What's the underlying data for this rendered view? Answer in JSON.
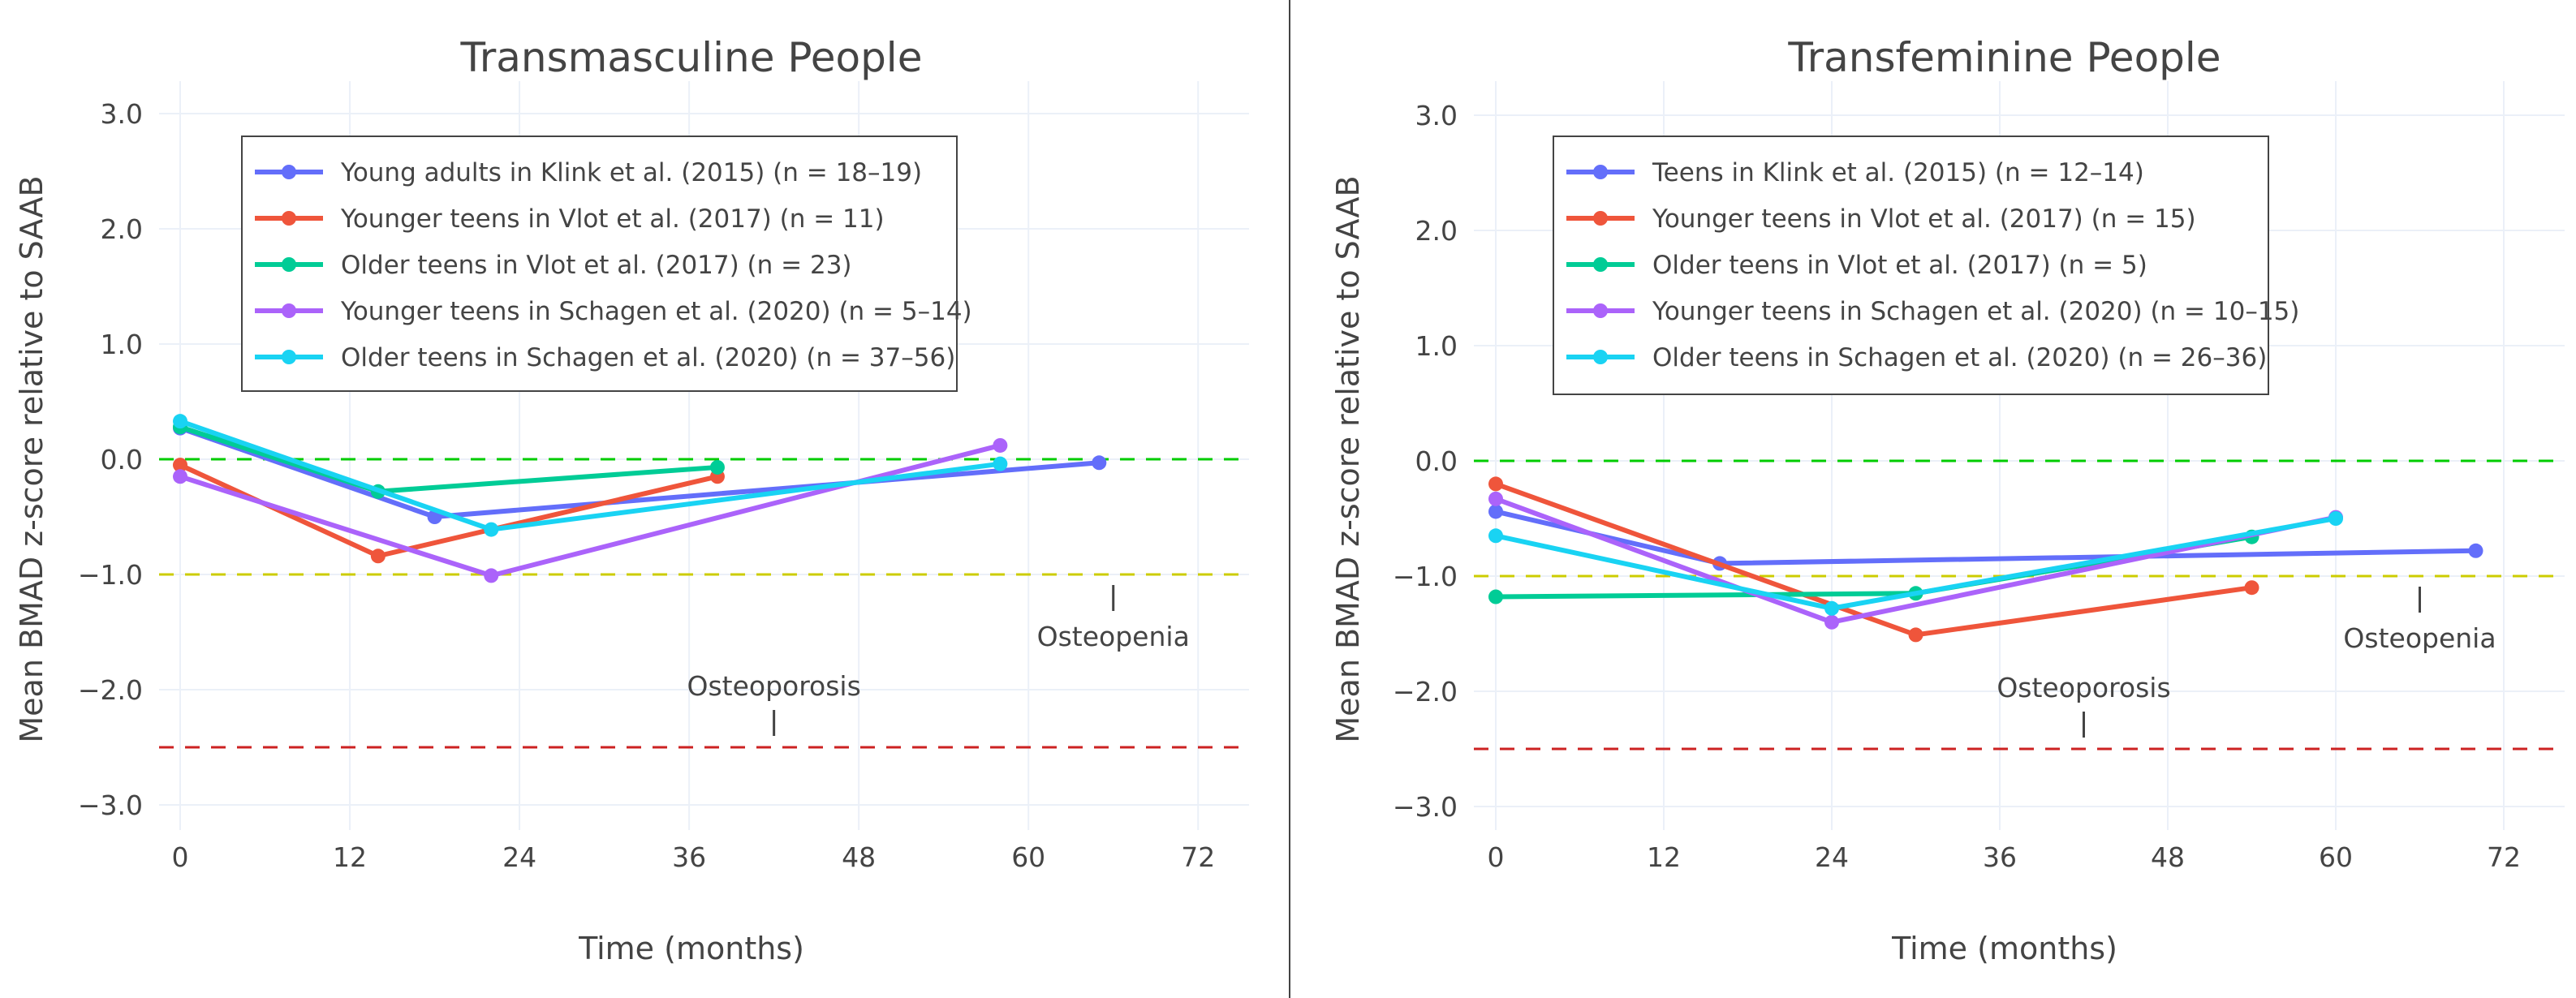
{
  "chart_data": [
    {
      "type": "line",
      "title": "Transmasculine People",
      "xlabel": "Time (months)",
      "ylabel": "Mean BMAD z-score relative to SAAB",
      "xticks": [
        "0",
        "12",
        "24",
        "36",
        "48",
        "60",
        "72"
      ],
      "yticks": [
        "3.0",
        "2.0",
        "1.0",
        "0.0",
        "−1.0",
        "−2.0",
        "−3.0"
      ],
      "xlim": [
        -1.5,
        75.6
      ],
      "ylim": [
        -3.3,
        3.3
      ],
      "grid": true,
      "legend_position": "top-left",
      "reference_lines": [
        {
          "y": 0,
          "color": "#00cc00"
        },
        {
          "y": -1,
          "color": "#cccc00"
        },
        {
          "y": -2.5,
          "color": "#cc2222"
        }
      ],
      "annotations": [
        {
          "text": "Osteopenia",
          "x": 66,
          "ref": -1,
          "side": "below"
        },
        {
          "text": "Osteoporosis",
          "x": 42,
          "ref": -2.5,
          "side": "above"
        }
      ],
      "series": [
        {
          "name": "Young adults in Klink et al. (2015) (n = 18–19)",
          "color": "#636efa",
          "x": [
            0,
            18,
            65
          ],
          "y": [
            0.27,
            -0.5,
            -0.03
          ]
        },
        {
          "name": "Younger teens in Vlot et al. (2017) (n = 11)",
          "color": "#ef553b",
          "x": [
            0,
            14,
            38
          ],
          "y": [
            -0.05,
            -0.84,
            -0.15
          ]
        },
        {
          "name": "Older teens in Vlot et al. (2017) (n = 23)",
          "color": "#00cc96",
          "x": [
            0,
            14,
            38
          ],
          "y": [
            0.28,
            -0.28,
            -0.07
          ]
        },
        {
          "name": "Younger teens in Schagen et al. (2020) (n = 5–14)",
          "color": "#ab63fa",
          "x": [
            0,
            22,
            58
          ],
          "y": [
            -0.15,
            -1.01,
            0.12
          ]
        },
        {
          "name": "Older teens in Schagen et al. (2020) (n = 37–56)",
          "color": "#19d3f3",
          "x": [
            0,
            22,
            58
          ],
          "y": [
            0.33,
            -0.61,
            -0.04
          ]
        }
      ]
    },
    {
      "type": "line",
      "title": "Transfeminine People",
      "xlabel": "Time (months)",
      "ylabel": "Mean BMAD z-score relative to SAAB",
      "xticks": [
        "0",
        "12",
        "24",
        "36",
        "48",
        "60",
        "72"
      ],
      "yticks": [
        "3.0",
        "2.0",
        "1.0",
        "0.0",
        "−1.0",
        "−2.0",
        "−3.0"
      ],
      "xlim": [
        -1.5,
        76.6
      ],
      "ylim": [
        -3.3,
        3.3
      ],
      "grid": true,
      "legend_position": "top-left",
      "reference_lines": [
        {
          "y": 0,
          "color": "#00cc00"
        },
        {
          "y": -1,
          "color": "#cccc00"
        },
        {
          "y": -2.5,
          "color": "#cc2222"
        }
      ],
      "annotations": [
        {
          "text": "Osteopenia",
          "x": 66,
          "ref": -1,
          "side": "below"
        },
        {
          "text": "Osteoporosis",
          "x": 42,
          "ref": -2.5,
          "side": "above"
        }
      ],
      "series": [
        {
          "name": "Teens in Klink et al. (2015) (n = 12–14)",
          "color": "#636efa",
          "x": [
            0,
            16,
            70
          ],
          "y": [
            -0.44,
            -0.89,
            -0.78
          ]
        },
        {
          "name": "Younger teens in Vlot et al. (2017) (n = 15)",
          "color": "#ef553b",
          "x": [
            0,
            30,
            54
          ],
          "y": [
            -0.2,
            -1.51,
            -1.1
          ]
        },
        {
          "name": "Older teens in Vlot et al. (2017) (n = 5)",
          "color": "#00cc96",
          "x": [
            0,
            30,
            54
          ],
          "y": [
            -1.18,
            -1.15,
            -0.66
          ]
        },
        {
          "name": "Younger teens in Schagen et al. (2020) (n = 10–15)",
          "color": "#ab63fa",
          "x": [
            0,
            24,
            60
          ],
          "y": [
            -0.33,
            -1.4,
            -0.49
          ]
        },
        {
          "name": "Older teens in Schagen et al. (2020) (n = 26–36)",
          "color": "#19d3f3",
          "x": [
            0,
            24,
            60
          ],
          "y": [
            -0.65,
            -1.28,
            -0.5
          ]
        }
      ]
    }
  ]
}
